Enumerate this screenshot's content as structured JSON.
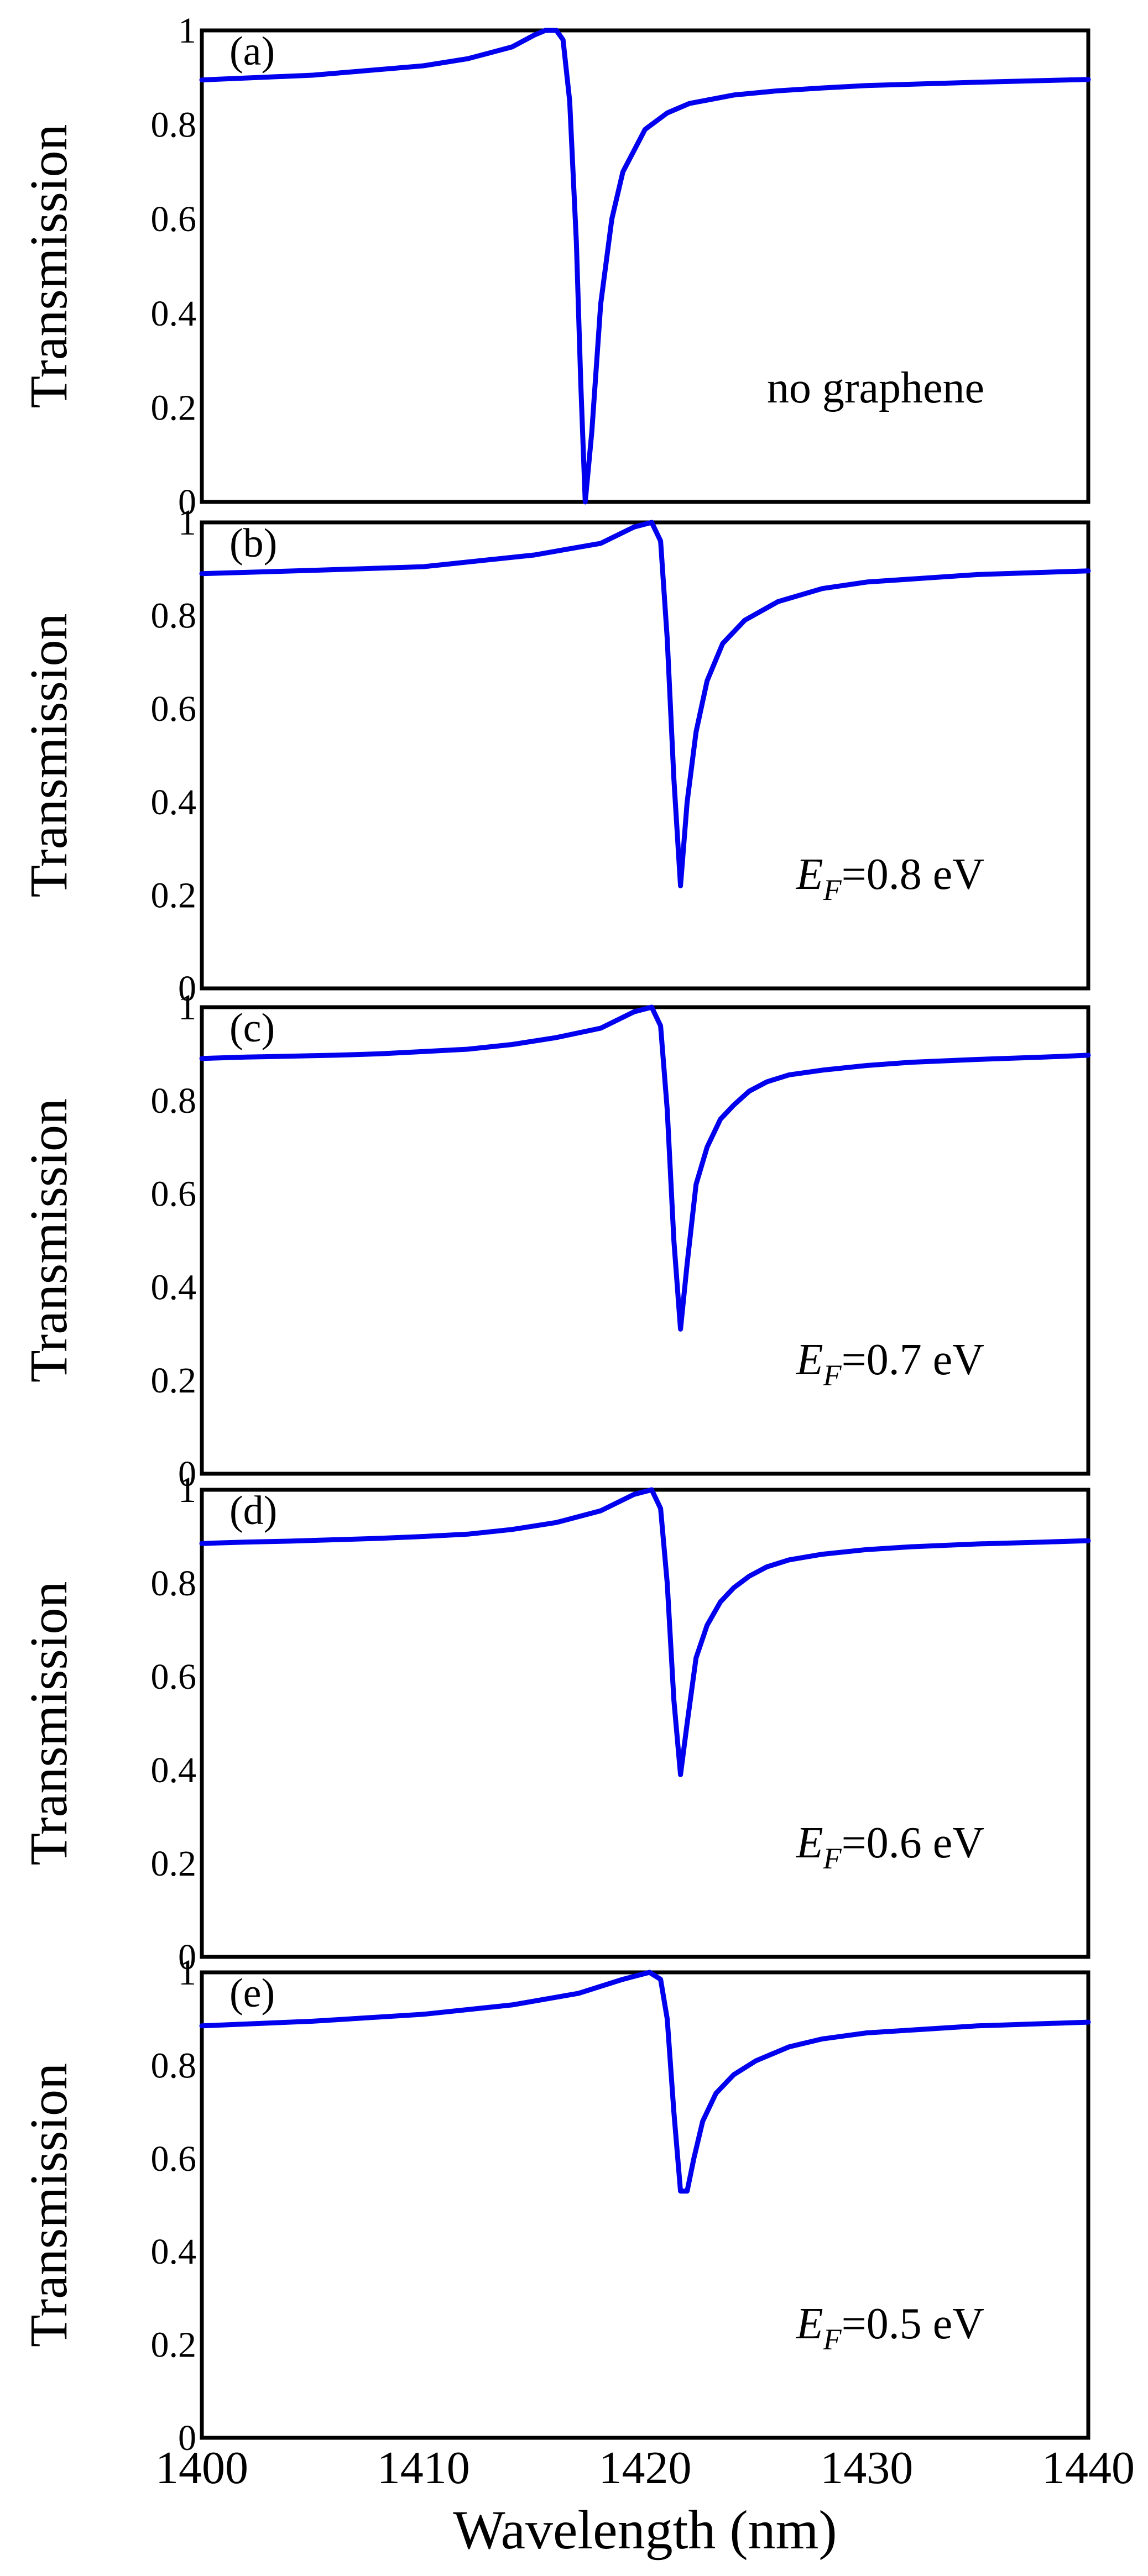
{
  "chart_data": [
    {
      "type": "line",
      "panel_label": "(a)",
      "annotation": "no graphene",
      "annotation_sub": "",
      "annotation_tail": "",
      "ylabel": "Transmission",
      "xlabel": "",
      "xlim": [
        1400,
        1440
      ],
      "ylim": [
        0,
        1
      ],
      "yticks": [
        "0",
        "0.2",
        "0.4",
        "0.6",
        "0.8",
        "1"
      ],
      "series": [
        {
          "color": "#0000ee",
          "x": [
            1400,
            1405,
            1410,
            1412,
            1414,
            1415,
            1415.5,
            1416,
            1416.3,
            1416.6,
            1416.9,
            1417.1,
            1417.3,
            1417.6,
            1418,
            1418.5,
            1419,
            1420,
            1421,
            1422,
            1424,
            1426,
            1428,
            1430,
            1435,
            1440
          ],
          "y": [
            0.895,
            0.905,
            0.925,
            0.94,
            0.965,
            0.99,
            1.0,
            1.0,
            0.98,
            0.85,
            0.55,
            0.25,
            0.0,
            0.15,
            0.42,
            0.6,
            0.7,
            0.79,
            0.825,
            0.845,
            0.863,
            0.872,
            0.878,
            0.883,
            0.89,
            0.896
          ]
        }
      ]
    },
    {
      "type": "line",
      "panel_label": "(b)",
      "annotation": "E",
      "annotation_sub": "F",
      "annotation_tail": "=0.8 eV",
      "ylabel": "Transmission",
      "xlabel": "",
      "xlim": [
        1400,
        1440
      ],
      "ylim": [
        0,
        1
      ],
      "yticks": [
        "0",
        "0.2",
        "0.4",
        "0.6",
        "0.8",
        "1"
      ],
      "series": [
        {
          "color": "#0000ee",
          "x": [
            1400,
            1405,
            1410,
            1415,
            1418,
            1419.5,
            1420.3,
            1420.7,
            1421,
            1421.3,
            1421.6,
            1421.9,
            1422.3,
            1422.8,
            1423.5,
            1424.5,
            1426,
            1428,
            1430,
            1435,
            1440
          ],
          "y": [
            0.89,
            0.897,
            0.905,
            0.93,
            0.955,
            0.99,
            1.0,
            0.96,
            0.75,
            0.45,
            0.22,
            0.4,
            0.55,
            0.66,
            0.74,
            0.79,
            0.83,
            0.858,
            0.872,
            0.888,
            0.896
          ]
        }
      ]
    },
    {
      "type": "line",
      "panel_label": "(c)",
      "annotation": "E",
      "annotation_sub": "F",
      "annotation_tail": "=0.7 eV",
      "ylabel": "Transmission",
      "xlabel": "",
      "xlim": [
        1400,
        1440
      ],
      "ylim": [
        0,
        1
      ],
      "yticks": [
        "0",
        "0.2",
        "0.4",
        "0.6",
        "0.8",
        "1"
      ],
      "series": [
        {
          "color": "#0000ee",
          "x": [
            1400,
            1402,
            1404,
            1406,
            1408,
            1410,
            1412,
            1414,
            1416,
            1418,
            1419.5,
            1420.3,
            1420.7,
            1421,
            1421.3,
            1421.6,
            1421.9,
            1422.3,
            1422.8,
            1423.4,
            1424,
            1424.7,
            1425.5,
            1426.5,
            1428,
            1430,
            1432,
            1435,
            1438,
            1440
          ],
          "y": [
            0.89,
            0.893,
            0.895,
            0.897,
            0.9,
            0.905,
            0.91,
            0.92,
            0.935,
            0.955,
            0.99,
            1.0,
            0.96,
            0.78,
            0.5,
            0.31,
            0.45,
            0.62,
            0.7,
            0.76,
            0.79,
            0.82,
            0.84,
            0.855,
            0.865,
            0.875,
            0.882,
            0.888,
            0.893,
            0.897
          ]
        }
      ]
    },
    {
      "type": "line",
      "panel_label": "(d)",
      "annotation": "E",
      "annotation_sub": "F",
      "annotation_tail": "=0.6 eV",
      "ylabel": "Transmission",
      "xlabel": "",
      "xlim": [
        1400,
        1440
      ],
      "ylim": [
        0,
        1
      ],
      "yticks": [
        "0",
        "0.2",
        "0.4",
        "0.6",
        "0.8",
        "1"
      ],
      "series": [
        {
          "color": "#0000ee",
          "x": [
            1400,
            1402,
            1404,
            1406,
            1408,
            1410,
            1412,
            1414,
            1416,
            1418,
            1419.5,
            1420.3,
            1420.7,
            1421,
            1421.3,
            1421.6,
            1421.9,
            1422.3,
            1422.8,
            1423.4,
            1424,
            1424.7,
            1425.5,
            1426.5,
            1428,
            1430,
            1432,
            1435,
            1438,
            1440
          ],
          "y": [
            0.885,
            0.888,
            0.89,
            0.893,
            0.896,
            0.9,
            0.905,
            0.915,
            0.93,
            0.955,
            0.99,
            1.0,
            0.96,
            0.8,
            0.55,
            0.39,
            0.5,
            0.64,
            0.71,
            0.76,
            0.79,
            0.815,
            0.835,
            0.85,
            0.862,
            0.872,
            0.878,
            0.884,
            0.888,
            0.891
          ]
        }
      ]
    },
    {
      "type": "line",
      "panel_label": "(e)",
      "annotation": "E",
      "annotation_sub": "F",
      "annotation_tail": "=0.5 eV",
      "ylabel": "Transmission",
      "xlabel": "Wavelength (nm)",
      "xlim": [
        1400,
        1440
      ],
      "ylim": [
        0,
        1
      ],
      "yticks": [
        "0",
        "0.2",
        "0.4",
        "0.6",
        "0.8",
        "1"
      ],
      "xticks": [
        "1400",
        "1410",
        "1420",
        "1430",
        "1440"
      ],
      "series": [
        {
          "color": "#0000ee",
          "x": [
            1400,
            1405,
            1410,
            1414,
            1417,
            1419,
            1420.2,
            1420.7,
            1421,
            1421.3,
            1421.6,
            1421.9,
            1422.2,
            1422.6,
            1423.2,
            1424,
            1425,
            1426.5,
            1428,
            1430,
            1435,
            1440
          ],
          "y": [
            0.885,
            0.895,
            0.91,
            0.93,
            0.955,
            0.985,
            1.0,
            0.985,
            0.9,
            0.7,
            0.53,
            0.53,
            0.6,
            0.68,
            0.74,
            0.78,
            0.81,
            0.84,
            0.857,
            0.87,
            0.885,
            0.893
          ]
        }
      ]
    }
  ]
}
